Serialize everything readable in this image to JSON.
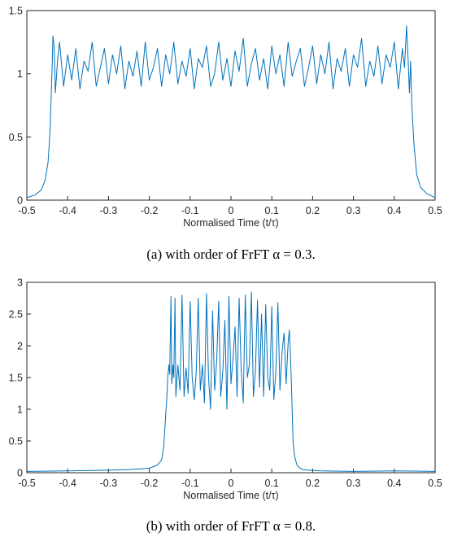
{
  "colors": {
    "line": "#0072BD",
    "axis": "#262626",
    "background": "#ffffff"
  },
  "chart_data": [
    {
      "type": "line",
      "title": "",
      "xlabel": "Normalised Time (t/τ)",
      "ylabel": "",
      "caption": "(a) with order of FrFT α = 0.3.",
      "xlim": [
        -0.5,
        0.5
      ],
      "ylim": [
        0,
        1.5
      ],
      "xticks": [
        -0.5,
        -0.4,
        -0.3,
        -0.2,
        -0.1,
        0,
        0.1,
        0.2,
        0.3,
        0.4,
        0.5
      ],
      "xtick_labels": [
        "-0.5",
        "-0.4",
        "-0.3",
        "-0.2",
        "-0.1",
        "0",
        "0.1",
        "0.2",
        "0.3",
        "0.4",
        "0.5"
      ],
      "yticks": [
        0,
        0.5,
        1,
        1.5
      ],
      "ytick_labels": [
        "0",
        "0.5",
        "1",
        "1.5"
      ],
      "grid": false,
      "series": [
        {
          "x": [
            -0.5,
            -0.48,
            -0.465,
            -0.455,
            -0.448,
            -0.443,
            -0.44,
            -0.438,
            -0.436,
            -0.433,
            -0.43,
            -0.425,
            -0.42,
            -0.41,
            -0.4,
            -0.39,
            -0.38,
            -0.37,
            -0.36,
            -0.35,
            -0.34,
            -0.33,
            -0.32,
            -0.31,
            -0.3,
            -0.29,
            -0.28,
            -0.27,
            -0.26,
            -0.25,
            -0.24,
            -0.23,
            -0.22,
            -0.21,
            -0.2,
            -0.19,
            -0.18,
            -0.17,
            -0.16,
            -0.15,
            -0.14,
            -0.13,
            -0.12,
            -0.11,
            -0.1,
            -0.09,
            -0.08,
            -0.07,
            -0.06,
            -0.05,
            -0.04,
            -0.03,
            -0.02,
            -0.01,
            0,
            0.01,
            0.02,
            0.03,
            0.04,
            0.05,
            0.06,
            0.07,
            0.08,
            0.09,
            0.1,
            0.11,
            0.12,
            0.13,
            0.14,
            0.15,
            0.16,
            0.17,
            0.18,
            0.19,
            0.2,
            0.21,
            0.22,
            0.23,
            0.24,
            0.25,
            0.26,
            0.27,
            0.28,
            0.29,
            0.3,
            0.31,
            0.32,
            0.33,
            0.34,
            0.35,
            0.36,
            0.37,
            0.38,
            0.39,
            0.4,
            0.41,
            0.42,
            0.425,
            0.43,
            0.434,
            0.437,
            0.44,
            0.443,
            0.448,
            0.455,
            0.465,
            0.48,
            0.5
          ],
          "y": [
            0.02,
            0.04,
            0.08,
            0.16,
            0.3,
            0.55,
            0.85,
            1.05,
            1.3,
            1.2,
            0.85,
            1.1,
            1.25,
            0.9,
            1.15,
            0.95,
            1.2,
            0.88,
            1.1,
            1.02,
            1.25,
            0.9,
            1.05,
            1.2,
            0.92,
            1.15,
            1.0,
            1.22,
            0.88,
            1.1,
            0.98,
            1.18,
            0.9,
            1.25,
            0.95,
            1.05,
            1.2,
            0.9,
            1.15,
            1.0,
            1.25,
            0.92,
            1.1,
            0.98,
            1.2,
            0.88,
            1.12,
            1.05,
            1.22,
            0.9,
            1.0,
            1.25,
            0.95,
            1.12,
            0.9,
            1.18,
            1.02,
            1.28,
            0.9,
            1.08,
            1.2,
            0.95,
            1.12,
            0.88,
            1.22,
            1.0,
            1.15,
            0.9,
            1.25,
            0.98,
            1.1,
            1.2,
            0.9,
            1.05,
            1.22,
            0.92,
            1.15,
            1.0,
            1.25,
            0.88,
            1.12,
            1.02,
            1.2,
            0.9,
            1.15,
            1.05,
            1.28,
            0.9,
            1.1,
            0.98,
            1.22,
            0.92,
            1.15,
            1.05,
            1.25,
            0.88,
            1.2,
            1.05,
            1.38,
            1.1,
            0.85,
            1.1,
            0.75,
            0.45,
            0.2,
            0.1,
            0.05,
            0.02
          ]
        }
      ]
    },
    {
      "type": "line",
      "title": "",
      "xlabel": "Normalised Time (t/τ)",
      "ylabel": "",
      "caption": "(b) with order of FrFT α = 0.8.",
      "xlim": [
        -0.5,
        0.5
      ],
      "ylim": [
        0,
        3
      ],
      "xticks": [
        -0.5,
        -0.4,
        -0.3,
        -0.2,
        -0.1,
        0,
        0.1,
        0.2,
        0.3,
        0.4,
        0.5
      ],
      "xtick_labels": [
        "-0.5",
        "-0.4",
        "-0.3",
        "-0.2",
        "-0.1",
        "0",
        "0.1",
        "0.2",
        "0.3",
        "0.4",
        "0.5"
      ],
      "yticks": [
        0,
        0.5,
        1,
        1.5,
        2,
        2.5,
        3
      ],
      "ytick_labels": [
        "0",
        "0.5",
        "1",
        "1.5",
        "2",
        "2.5",
        "3"
      ],
      "grid": false,
      "series": [
        {
          "x": [
            -0.5,
            -0.4,
            -0.3,
            -0.25,
            -0.2,
            -0.18,
            -0.17,
            -0.165,
            -0.16,
            -0.157,
            -0.155,
            -0.152,
            -0.15,
            -0.147,
            -0.145,
            -0.142,
            -0.14,
            -0.137,
            -0.135,
            -0.13,
            -0.125,
            -0.12,
            -0.115,
            -0.11,
            -0.105,
            -0.1,
            -0.095,
            -0.09,
            -0.085,
            -0.08,
            -0.075,
            -0.07,
            -0.065,
            -0.06,
            -0.055,
            -0.05,
            -0.045,
            -0.04,
            -0.035,
            -0.03,
            -0.025,
            -0.02,
            -0.015,
            -0.01,
            -0.005,
            0,
            0.005,
            0.01,
            0.015,
            0.02,
            0.025,
            0.03,
            0.035,
            0.04,
            0.045,
            0.05,
            0.055,
            0.06,
            0.065,
            0.07,
            0.075,
            0.08,
            0.085,
            0.09,
            0.095,
            0.1,
            0.105,
            0.11,
            0.115,
            0.12,
            0.125,
            0.13,
            0.135,
            0.14,
            0.143,
            0.146,
            0.149,
            0.152,
            0.155,
            0.158,
            0.162,
            0.168,
            0.175,
            0.19,
            0.22,
            0.3,
            0.4,
            0.5
          ],
          "y": [
            0.02,
            0.03,
            0.04,
            0.05,
            0.07,
            0.12,
            0.2,
            0.4,
            0.9,
            1.2,
            1.5,
            1.7,
            1.55,
            2.78,
            1.4,
            1.7,
            1.5,
            2.75,
            1.2,
            1.7,
            1.3,
            2.8,
            1.2,
            1.65,
            1.25,
            2.7,
            1.5,
            1.15,
            1.6,
            2.75,
            1.3,
            1.7,
            1.1,
            2.82,
            1.5,
            1.0,
            2.55,
            1.3,
            1.75,
            2.7,
            1.2,
            1.6,
            2.4,
            1.0,
            2.78,
            1.4,
            1.8,
            2.3,
            1.2,
            2.75,
            1.6,
            1.1,
            2.8,
            1.5,
            1.7,
            2.85,
            1.2,
            1.6,
            2.72,
            1.35,
            2.5,
            1.2,
            2.65,
            1.5,
            1.3,
            2.62,
            1.15,
            1.6,
            2.68,
            1.3,
            1.9,
            2.2,
            1.4,
            2.05,
            2.25,
            1.8,
            1.2,
            0.5,
            0.3,
            0.2,
            0.12,
            0.08,
            0.05,
            0.04,
            0.03,
            0.02,
            0.03,
            0.02
          ]
        }
      ]
    }
  ]
}
